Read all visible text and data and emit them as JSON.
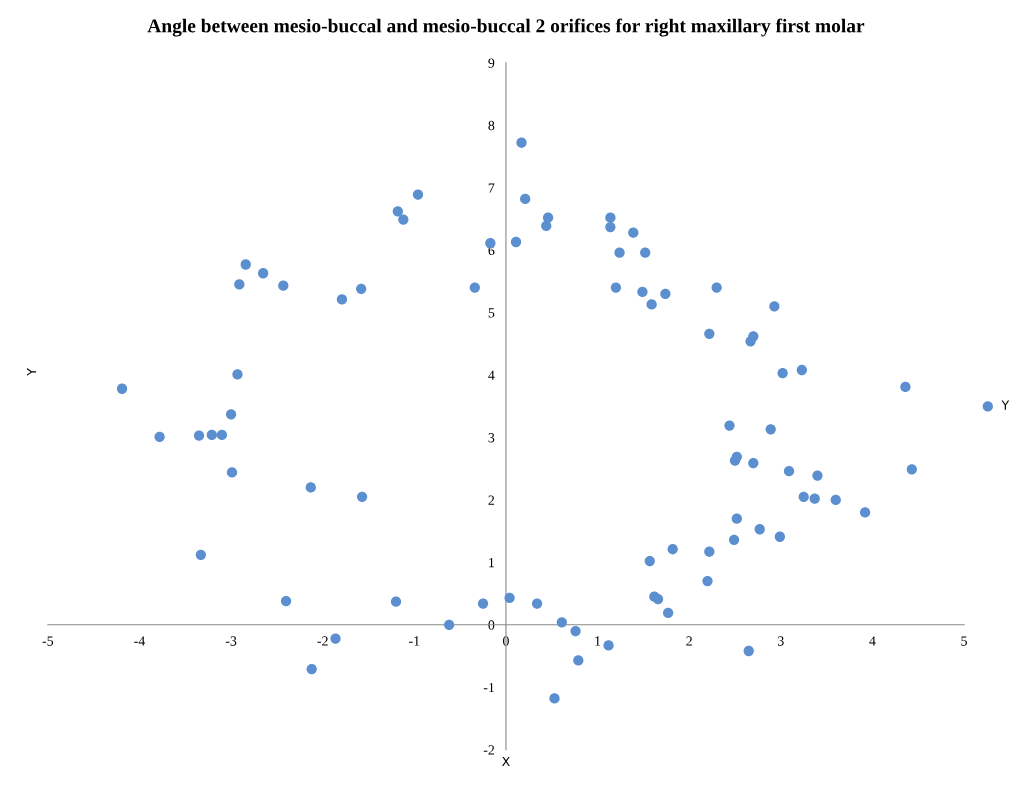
{
  "chart_data": {
    "type": "scatter",
    "title": "Angle between mesio-buccal and mesio-buccal 2 orifices for right maxillary first molar",
    "xlabel": "X",
    "ylabel": "Y",
    "xlim": [
      -5,
      5
    ],
    "ylim": [
      -2,
      9
    ],
    "xticks": [
      -5,
      -4,
      -3,
      -2,
      -1,
      0,
      1,
      2,
      3,
      4,
      5
    ],
    "yticks": [
      -2,
      -1,
      0,
      1,
      2,
      3,
      4,
      5,
      6,
      7,
      8,
      9
    ],
    "grid": false,
    "legend": "right",
    "marker": "circle",
    "series": [
      {
        "name": "Y",
        "color": "#5b8fd0",
        "x": [
          -4.19,
          -3.78,
          -3.35,
          -3.21,
          -3.1,
          -3.0,
          -2.93,
          -2.99,
          -3.33,
          -2.91,
          -2.84,
          -2.65,
          -2.43,
          -2.13,
          -2.4,
          -2.12,
          -1.86,
          -1.79,
          -1.58,
          -1.57,
          -1.2,
          -1.18,
          -1.12,
          -0.96,
          -0.62,
          -0.34,
          -0.25,
          -0.17,
          0.04,
          0.17,
          0.21,
          0.11,
          0.46,
          0.44,
          1.14,
          1.14,
          1.39,
          1.24,
          1.52,
          1.2,
          1.49,
          1.74,
          1.59,
          2.3,
          2.93,
          2.22,
          2.7,
          2.67,
          3.02,
          3.23,
          4.36,
          2.44,
          2.89,
          2.52,
          2.5,
          2.7,
          3.09,
          3.4,
          4.43,
          3.25,
          3.37,
          3.6,
          3.92,
          2.52,
          2.77,
          2.99,
          2.49,
          1.82,
          2.22,
          1.57,
          2.2,
          1.62,
          1.66,
          1.77,
          0.34,
          0.61,
          0.76,
          1.12,
          0.79,
          0.53,
          2.65
        ],
        "values": [
          3.78,
          3.01,
          3.03,
          3.04,
          3.04,
          3.37,
          4.01,
          2.44,
          1.12,
          5.45,
          5.77,
          5.63,
          5.43,
          2.2,
          0.38,
          -0.71,
          -0.22,
          5.21,
          5.38,
          2.05,
          0.37,
          6.62,
          6.49,
          6.89,
          0.0,
          5.4,
          0.34,
          6.11,
          0.43,
          7.72,
          6.82,
          6.13,
          6.52,
          6.39,
          6.52,
          6.37,
          6.28,
          5.96,
          5.96,
          5.4,
          5.33,
          5.3,
          5.13,
          5.4,
          5.1,
          4.66,
          4.62,
          4.54,
          4.03,
          4.08,
          3.81,
          3.19,
          3.13,
          2.69,
          2.63,
          2.59,
          2.46,
          2.39,
          2.49,
          2.05,
          2.02,
          2.0,
          1.8,
          1.7,
          1.53,
          1.41,
          1.36,
          1.21,
          1.17,
          1.02,
          0.7,
          0.45,
          0.41,
          0.19,
          0.34,
          0.04,
          -0.1,
          -0.33,
          -0.57,
          -1.18,
          -0.42
        ]
      }
    ]
  }
}
